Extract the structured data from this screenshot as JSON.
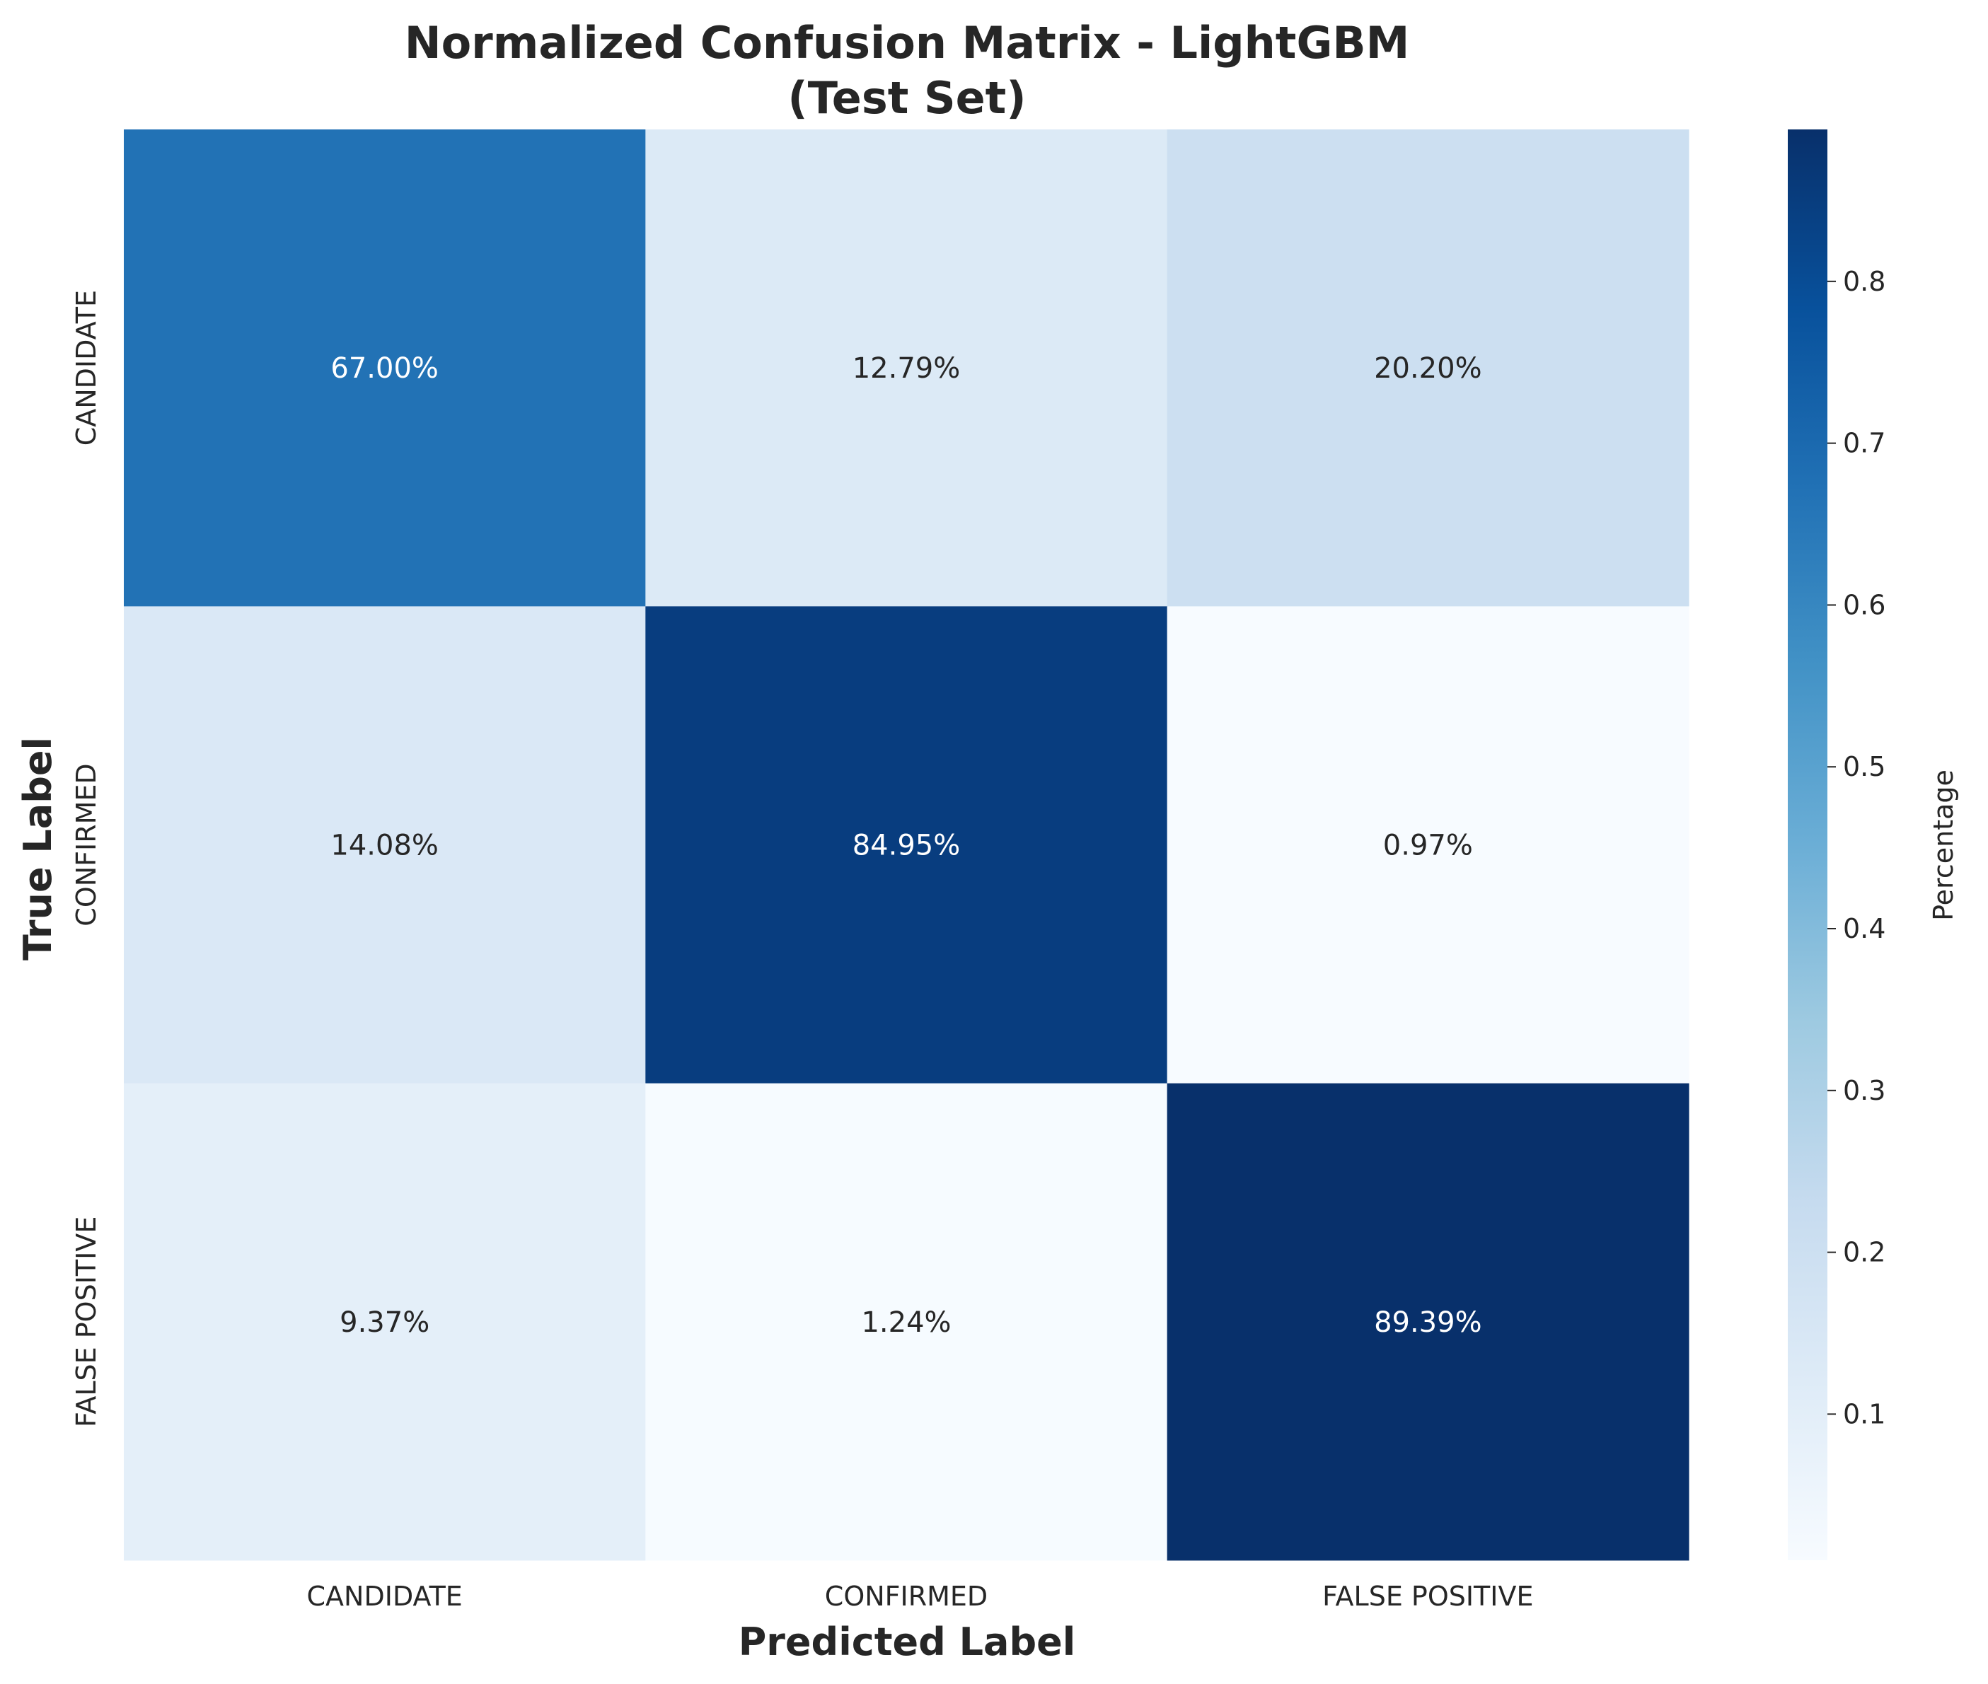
{
  "chart_data": {
    "type": "heatmap",
    "title": [
      "Normalized Confusion Matrix - LightGBM",
      "(Test Set)"
    ],
    "xlabel": "Predicted Label",
    "ylabel": "True Label",
    "x_categories": [
      "CANDIDATE",
      "CONFIRMED",
      "FALSE POSITIVE"
    ],
    "y_categories": [
      "CANDIDATE",
      "CONFIRMED",
      "FALSE POSITIVE"
    ],
    "values": [
      [
        0.67,
        0.1279,
        0.202
      ],
      [
        0.1408,
        0.8495,
        0.0097
      ],
      [
        0.0937,
        0.0124,
        0.8939
      ]
    ],
    "cell_labels": [
      [
        "67.00%",
        "12.79%",
        "20.20%"
      ],
      [
        "14.08%",
        "84.95%",
        "0.97%"
      ],
      [
        "9.37%",
        "1.24%",
        "89.39%"
      ]
    ],
    "colormap": "Blues",
    "colorbar": {
      "label": "Percentage",
      "vmin": 0.0097,
      "vmax": 0.8939,
      "ticks": [
        0.1,
        0.2,
        0.3,
        0.4,
        0.5,
        0.6,
        0.7,
        0.8
      ],
      "tick_labels": [
        "0.1",
        "0.2",
        "0.3",
        "0.4",
        "0.5",
        "0.6",
        "0.7",
        "0.8"
      ]
    }
  }
}
